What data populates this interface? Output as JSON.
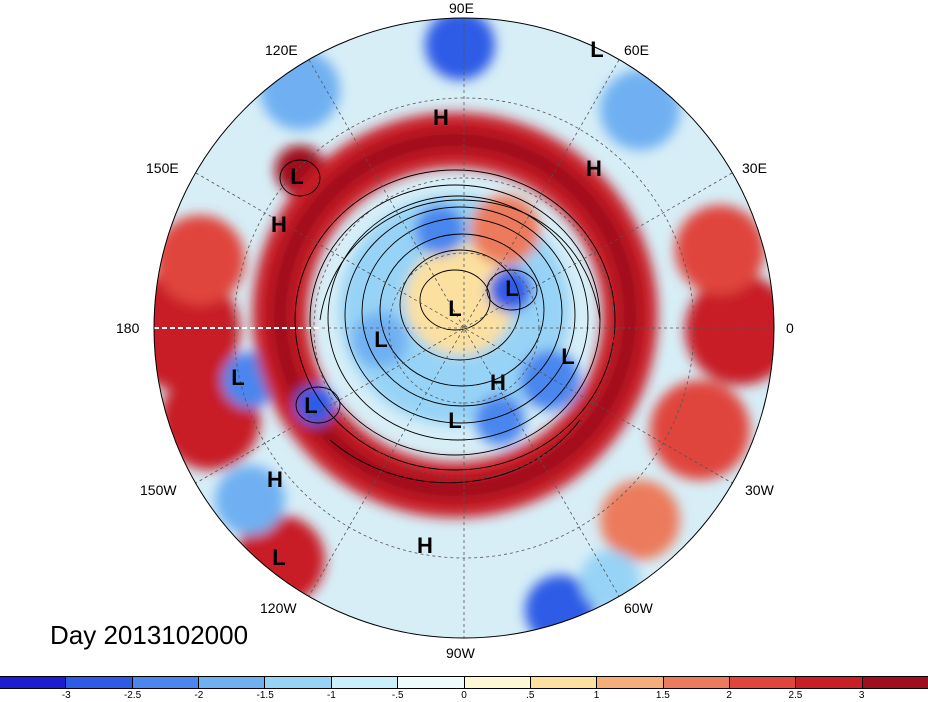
{
  "title": "Day 2013102000",
  "longitude_labels": {
    "lon_90e": "90E",
    "lon_60e": "60E",
    "lon_120e": "120E",
    "lon_30e": "30E",
    "lon_150e": "150E",
    "lon_180": "180",
    "lon_0": "0",
    "lon_150w": "150W",
    "lon_30w": "30W",
    "lon_120w": "120W",
    "lon_60w": "60W",
    "lon_90w": "90W"
  },
  "pressure_centers": [
    {
      "id": "L-1",
      "label": "L"
    },
    {
      "id": "H-1",
      "label": "H"
    },
    {
      "id": "H-2",
      "label": "H"
    },
    {
      "id": "L-2",
      "label": "L"
    },
    {
      "id": "H-3",
      "label": "H"
    },
    {
      "id": "L-3",
      "label": "L"
    },
    {
      "id": "L-4",
      "label": "L"
    },
    {
      "id": "L-5",
      "label": "L"
    },
    {
      "id": "L-6",
      "label": "L"
    },
    {
      "id": "L-7",
      "label": "L"
    },
    {
      "id": "H-4",
      "label": "H"
    },
    {
      "id": "L-8",
      "label": "L"
    },
    {
      "id": "L-9",
      "label": "L"
    },
    {
      "id": "H-5",
      "label": "H"
    },
    {
      "id": "H-6",
      "label": "H"
    },
    {
      "id": "L-10",
      "label": "L"
    }
  ],
  "colorbar": {
    "colors": [
      "#1d1dcf",
      "#2e5be6",
      "#4a86ee",
      "#6fb0f2",
      "#97d3f6",
      "#c8effa",
      "#eefbfc",
      "#fdf7d4",
      "#fbe0a0",
      "#f5ad7a",
      "#ec7a5c",
      "#e0453c",
      "#c81e26",
      "#a00d1c"
    ],
    "ticks": [
      "-3",
      "-2.5",
      "-2",
      "-1.5",
      "-1",
      "-.5",
      "0",
      ".5",
      "1",
      "1.5",
      "2",
      "2.5",
      "3"
    ]
  }
}
